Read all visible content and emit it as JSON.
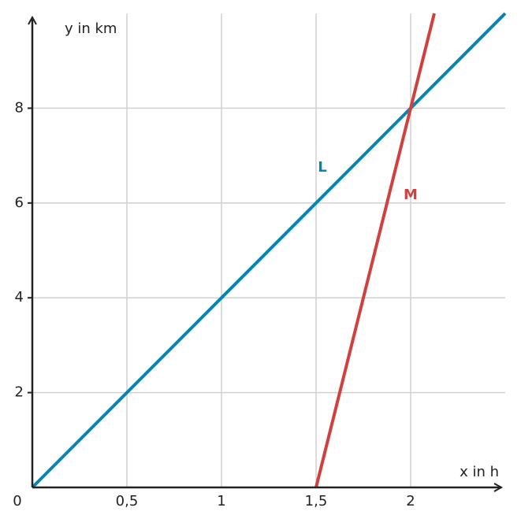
{
  "chart_data": {
    "type": "line",
    "xlabel": "x in h",
    "ylabel": "y in km",
    "series": [
      {
        "name": "L",
        "color": "#0586b0",
        "x": [
          0,
          2.5
        ],
        "values": [
          0,
          10
        ]
      },
      {
        "name": "M",
        "color": "#d0403f",
        "x": [
          1.5,
          2,
          2.125
        ],
        "values": [
          0,
          8,
          10
        ]
      }
    ],
    "xlim": [
      0,
      2.5
    ],
    "ylim": [
      0,
      10
    ],
    "xticks": [
      0,
      {
        "value": 0.5,
        "label": "0,5"
      },
      1,
      {
        "value": 1.5,
        "label": "1,5"
      },
      2
    ],
    "yticks": [
      2,
      4,
      6,
      8
    ],
    "grid": true
  }
}
